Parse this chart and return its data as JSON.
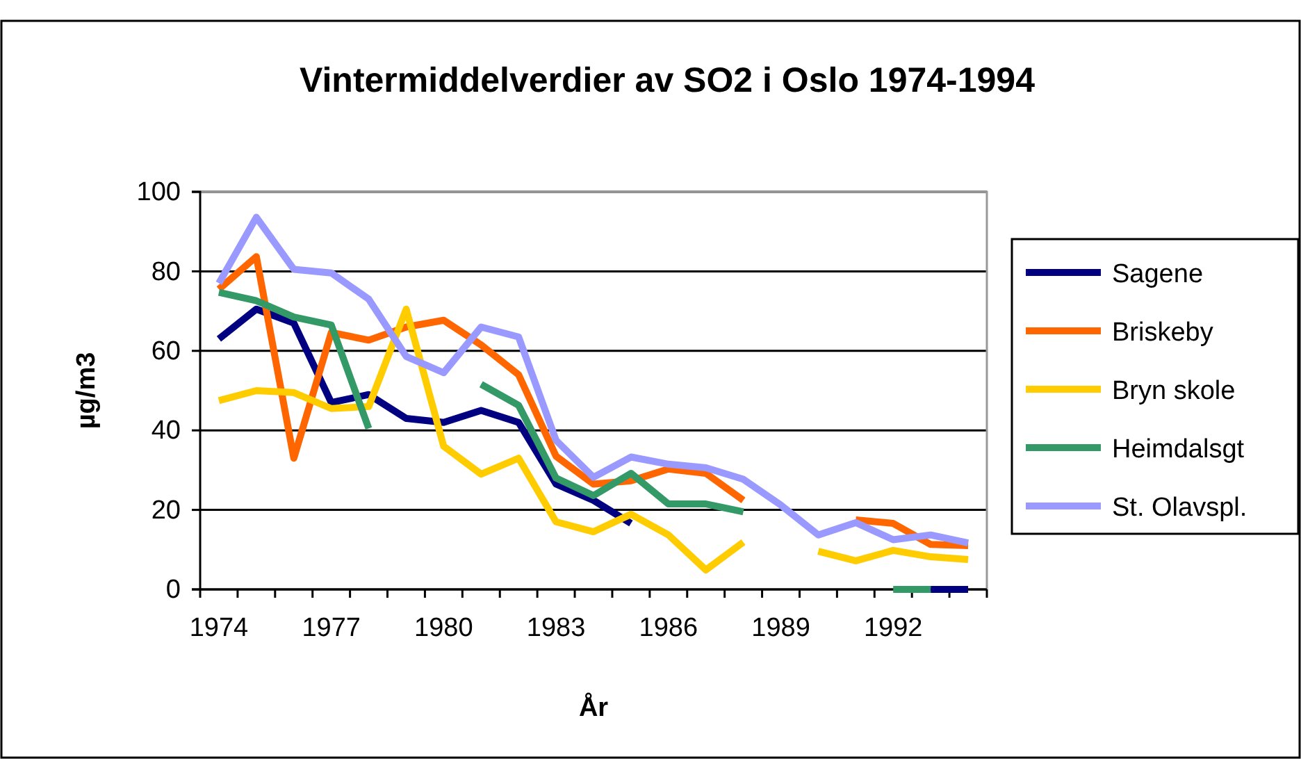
{
  "chart_data": {
    "type": "line",
    "title": "Vintermiddelverdier av SO2 i Oslo 1974-1994",
    "xlabel": "År",
    "ylabel": "µg/m3",
    "categories": [
      "1974",
      null,
      null,
      "1977",
      null,
      null,
      "1980",
      null,
      null,
      "1983",
      null,
      null,
      "1986",
      null,
      null,
      "1989",
      null,
      null,
      "1992",
      null,
      null
    ],
    "series": [
      {
        "name": "Sagene",
        "color": "#000080",
        "values": [
          63,
          70.5,
          67,
          47,
          49,
          43,
          42,
          45,
          42,
          26.5,
          22.4,
          16.6,
          null,
          null,
          null,
          null,
          null,
          null,
          null,
          0,
          0
        ]
      },
      {
        "name": "Briskeby",
        "color": "#ff6600",
        "values": [
          75.5,
          83.7,
          33,
          64.6,
          62.7,
          66,
          67.7,
          61.5,
          54,
          33.5,
          26.5,
          27.3,
          30.3,
          29.2,
          22.4,
          null,
          null,
          17.5,
          16.6,
          11.3,
          11
        ]
      },
      {
        "name": "Bryn skole",
        "color": "#ffcc00",
        "values": [
          47.5,
          50,
          49.5,
          45.5,
          46,
          70.5,
          36,
          29,
          33,
          17,
          14.5,
          18.9,
          13.7,
          4.9,
          11.9,
          null,
          9.6,
          7.2,
          9.8,
          8.2,
          7.5
        ]
      },
      {
        "name": "Heimdalsgt",
        "color": "#339966",
        "values": [
          74.7,
          72.6,
          68.5,
          66.5,
          40.5,
          null,
          null,
          51.6,
          46.3,
          28,
          23.6,
          29.2,
          21.5,
          21.5,
          19.5,
          null,
          null,
          null,
          0,
          0,
          null
        ]
      },
      {
        "name": "St. Olavspl.",
        "color": "#9999ff",
        "values": [
          77,
          93.6,
          80.5,
          79.6,
          73,
          58.6,
          54.5,
          66,
          63.5,
          37.5,
          28.2,
          33.3,
          31.5,
          30.6,
          27.7,
          21.2,
          13.7,
          16.8,
          12.5,
          13.7,
          11.7
        ]
      }
    ],
    "ylim": [
      0,
      100
    ],
    "yticks": [
      0,
      20,
      40,
      60,
      80,
      100
    ],
    "grid": "y",
    "legend": "right",
    "line_style": "solid",
    "marker": "none"
  }
}
